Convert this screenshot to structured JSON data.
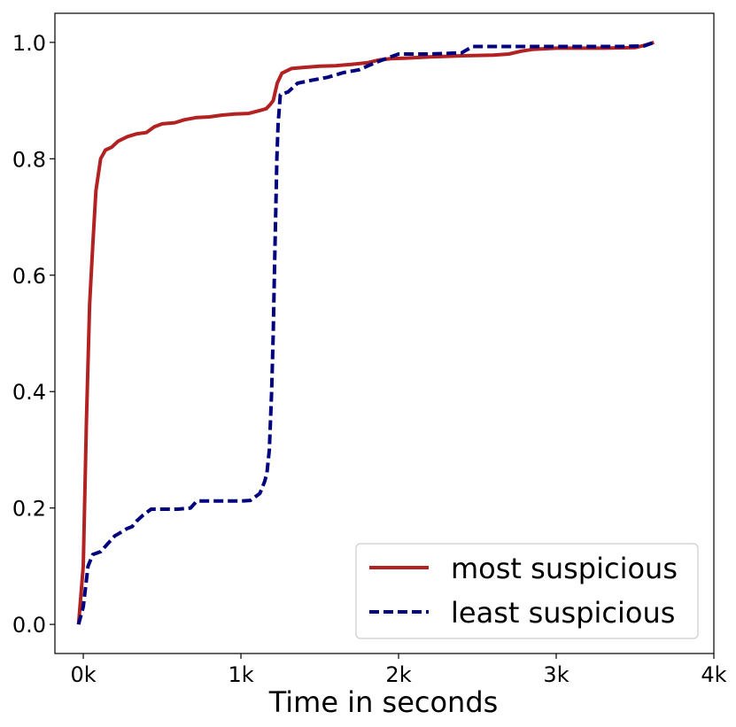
{
  "chart_data": {
    "type": "line",
    "title": "",
    "xlabel": "Time in seconds",
    "ylabel": "",
    "xlim": [
      -180,
      4000
    ],
    "ylim": [
      -0.05,
      1.05
    ],
    "x_ticks": [
      {
        "value": 0,
        "label": "0k"
      },
      {
        "value": 1000,
        "label": "1k"
      },
      {
        "value": 2000,
        "label": "2k"
      },
      {
        "value": 3000,
        "label": "3k"
      },
      {
        "value": 4000,
        "label": "4k"
      }
    ],
    "y_ticks": [
      {
        "value": 0.0,
        "label": "0.0"
      },
      {
        "value": 0.2,
        "label": "0.2"
      },
      {
        "value": 0.4,
        "label": "0.4"
      },
      {
        "value": 0.6,
        "label": "0.6"
      },
      {
        "value": 0.8,
        "label": "0.8"
      },
      {
        "value": 1.0,
        "label": "1.0"
      }
    ],
    "grid": false,
    "legend_position": "bottom-right",
    "series": [
      {
        "name": "most suspicious",
        "color": "#b22222",
        "style": "solid",
        "points": [
          [
            -30,
            0.0
          ],
          [
            0,
            0.1
          ],
          [
            20,
            0.35
          ],
          [
            40,
            0.55
          ],
          [
            60,
            0.65
          ],
          [
            80,
            0.745
          ],
          [
            110,
            0.8
          ],
          [
            140,
            0.815
          ],
          [
            180,
            0.82
          ],
          [
            220,
            0.83
          ],
          [
            280,
            0.838
          ],
          [
            340,
            0.843
          ],
          [
            400,
            0.845
          ],
          [
            450,
            0.855
          ],
          [
            500,
            0.86
          ],
          [
            580,
            0.862
          ],
          [
            640,
            0.867
          ],
          [
            720,
            0.871
          ],
          [
            800,
            0.872
          ],
          [
            880,
            0.875
          ],
          [
            960,
            0.877
          ],
          [
            1050,
            0.878
          ],
          [
            1120,
            0.883
          ],
          [
            1160,
            0.886
          ],
          [
            1185,
            0.893
          ],
          [
            1205,
            0.9
          ],
          [
            1230,
            0.93
          ],
          [
            1260,
            0.947
          ],
          [
            1320,
            0.955
          ],
          [
            1400,
            0.957
          ],
          [
            1500,
            0.959
          ],
          [
            1600,
            0.96
          ],
          [
            1700,
            0.962
          ],
          [
            1800,
            0.965
          ],
          [
            1880,
            0.97
          ],
          [
            1950,
            0.972
          ],
          [
            2050,
            0.973
          ],
          [
            2200,
            0.975
          ],
          [
            2400,
            0.977
          ],
          [
            2600,
            0.978
          ],
          [
            2700,
            0.98
          ],
          [
            2780,
            0.985
          ],
          [
            2850,
            0.988
          ],
          [
            3000,
            0.99
          ],
          [
            3300,
            0.99
          ],
          [
            3500,
            0.991
          ],
          [
            3560,
            0.995
          ],
          [
            3620,
            1.0
          ]
        ]
      },
      {
        "name": "least suspicious",
        "color": "#00007f",
        "style": "dashed",
        "points": [
          [
            -30,
            0.0
          ],
          [
            0,
            0.03
          ],
          [
            30,
            0.1
          ],
          [
            60,
            0.12
          ],
          [
            110,
            0.125
          ],
          [
            160,
            0.14
          ],
          [
            200,
            0.152
          ],
          [
            250,
            0.16
          ],
          [
            280,
            0.165
          ],
          [
            310,
            0.168
          ],
          [
            340,
            0.178
          ],
          [
            380,
            0.188
          ],
          [
            430,
            0.198
          ],
          [
            500,
            0.198
          ],
          [
            600,
            0.198
          ],
          [
            680,
            0.2
          ],
          [
            720,
            0.212
          ],
          [
            800,
            0.212
          ],
          [
            900,
            0.212
          ],
          [
            1000,
            0.212
          ],
          [
            1060,
            0.213
          ],
          [
            1120,
            0.225
          ],
          [
            1150,
            0.245
          ],
          [
            1165,
            0.26
          ],
          [
            1180,
            0.3
          ],
          [
            1195,
            0.4
          ],
          [
            1205,
            0.5
          ],
          [
            1212,
            0.6
          ],
          [
            1220,
            0.7
          ],
          [
            1228,
            0.8
          ],
          [
            1236,
            0.86
          ],
          [
            1250,
            0.91
          ],
          [
            1300,
            0.915
          ],
          [
            1360,
            0.93
          ],
          [
            1450,
            0.935
          ],
          [
            1550,
            0.94
          ],
          [
            1650,
            0.948
          ],
          [
            1750,
            0.953
          ],
          [
            1850,
            0.965
          ],
          [
            1950,
            0.975
          ],
          [
            2000,
            0.98
          ],
          [
            2200,
            0.98
          ],
          [
            2400,
            0.982
          ],
          [
            2470,
            0.993
          ],
          [
            2600,
            0.993
          ],
          [
            3000,
            0.993
          ],
          [
            3400,
            0.993
          ],
          [
            3560,
            0.994
          ],
          [
            3620,
            1.0
          ]
        ]
      }
    ]
  }
}
